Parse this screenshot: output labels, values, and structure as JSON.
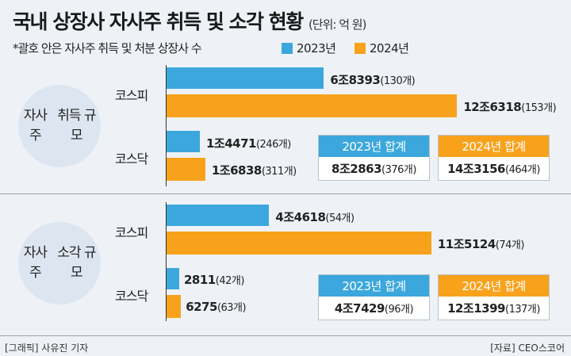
{
  "title": "국내 상장사 자사주 취득 및 소각 현황",
  "unit": "(단위: 억 원)",
  "note": "*괄호 안은 자사주 취득 및 처분 상장사 수",
  "colors": {
    "2023": "#3ba7dc",
    "2024": "#f8a21c"
  },
  "chart_data": {
    "type": "bar",
    "orientation": "horizontal",
    "legend": [
      "2023년",
      "2024년"
    ],
    "sections": [
      {
        "label": "자사주 취득 규모",
        "label_lines": [
          "자사주",
          "취득 규모"
        ],
        "rows": [
          {
            "category": "코스피",
            "values": [
              {
                "year": "2023년",
                "amount_eok": 68393,
                "text": "6조8393",
                "count": "(130개)"
              },
              {
                "year": "2024년",
                "amount_eok": 126318,
                "text": "12조6318",
                "count": "(153개)"
              }
            ]
          },
          {
            "category": "코스닥",
            "values": [
              {
                "year": "2023년",
                "amount_eok": 14471,
                "text": "1조4471",
                "count": "(246개)"
              },
              {
                "year": "2024년",
                "amount_eok": 16838,
                "text": "1조6838",
                "count": "(311개)"
              }
            ]
          }
        ],
        "totals": [
          {
            "label": "2023년 합계",
            "text": "8조2863",
            "count": "(376개)"
          },
          {
            "label": "2024년 합계",
            "text": "14조3156",
            "count": "(464개)"
          }
        ]
      },
      {
        "label": "자사주 소각 규모",
        "label_lines": [
          "자사주",
          "소각 규모"
        ],
        "rows": [
          {
            "category": "코스피",
            "values": [
              {
                "year": "2023년",
                "amount_eok": 44618,
                "text": "4조4618",
                "count": "(54개)"
              },
              {
                "year": "2024년",
                "amount_eok": 115124,
                "text": "11조5124",
                "count": "(74개)"
              }
            ]
          },
          {
            "category": "코스닥",
            "values": [
              {
                "year": "2023년",
                "amount_eok": 2811,
                "text": "2811",
                "count": "(42개)"
              },
              {
                "year": "2024년",
                "amount_eok": 6275,
                "text": "6275",
                "count": "(63개)"
              }
            ]
          }
        ],
        "totals": [
          {
            "label": "2023년 합계",
            "text": "4조7429",
            "count": "(96개)"
          },
          {
            "label": "2024년 합계",
            "text": "12조1399",
            "count": "(137개)"
          }
        ]
      }
    ]
  },
  "footer": {
    "left": "[그래픽] 사유진 기자",
    "right": "[자료] CEO스코어"
  }
}
